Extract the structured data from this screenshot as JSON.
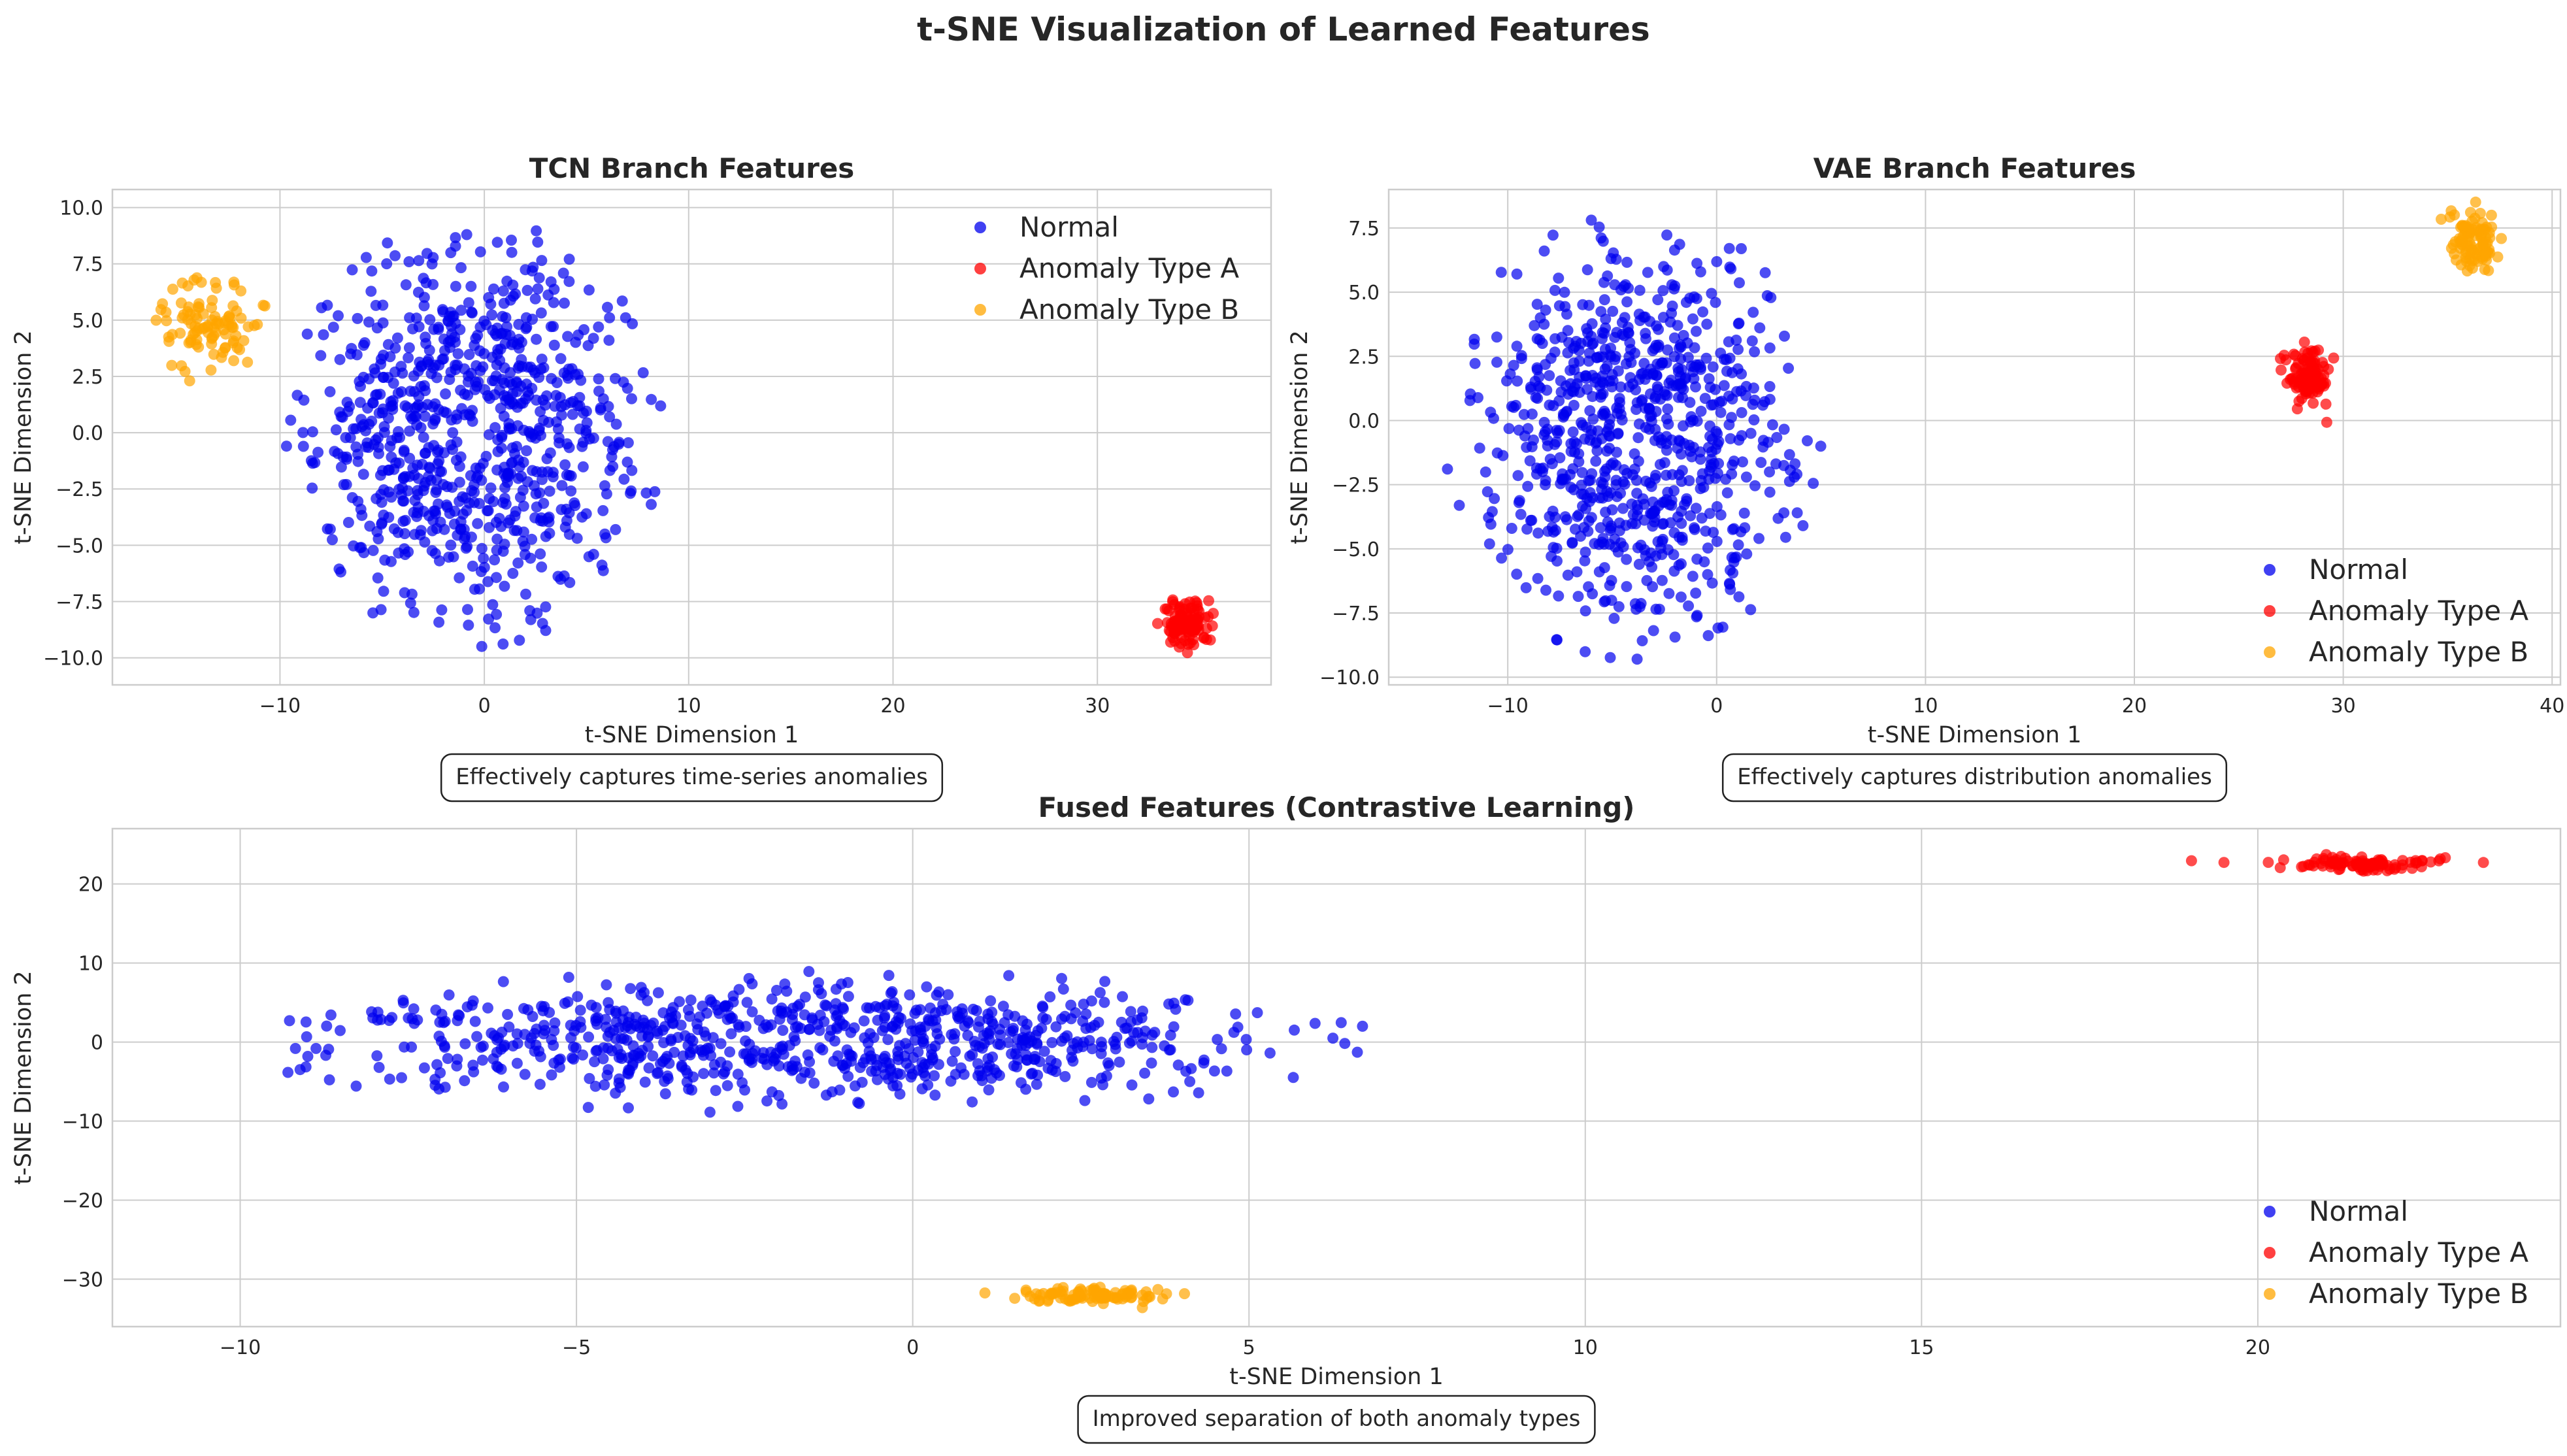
{
  "figure": {
    "title": "t-SNE Visualization of Learned Features"
  },
  "colors": {
    "normal": "#0000ee",
    "anomaly_a": "#ff0000",
    "anomaly_b": "#ffa500",
    "grid": "#cccccc",
    "axes_edge": "#cccccc"
  },
  "chart_data": [
    {
      "id": "tcn",
      "type": "scatter",
      "title": "TCN Branch Features",
      "xlabel": "t-SNE Dimension 1",
      "ylabel": "t-SNE Dimension 2",
      "xlim": [
        -18.2,
        38.5
      ],
      "ylim": [
        -11.2,
        10.8
      ],
      "xticks": [
        -10,
        0,
        10,
        20,
        30
      ],
      "yticks": [
        -10.0,
        -7.5,
        -5.0,
        -2.5,
        0.0,
        2.5,
        5.0,
        7.5,
        10.0
      ],
      "grid": true,
      "legend_position": "upper right",
      "annotation": "Effectively captures time-series anomalies",
      "series": [
        {
          "name": "Normal",
          "color_key": "normal",
          "count": 800,
          "distribution": {
            "shape": "disc",
            "center": [
              -0.5,
              0
            ],
            "radius_x": 9.2,
            "radius_y": 9.5
          }
        },
        {
          "name": "Anomaly Type A",
          "color_key": "anomaly_a",
          "count": 100,
          "distribution": {
            "shape": "gaussian",
            "center": [
              34.3,
              -8.5
            ],
            "sd_x": 0.55,
            "sd_y": 0.55
          }
        },
        {
          "name": "Anomaly Type B",
          "color_key": "anomaly_b",
          "count": 100,
          "distribution": {
            "shape": "gaussian",
            "center": [
              -13.5,
              4.8
            ],
            "sd_x": 1.3,
            "sd_y": 0.95
          }
        }
      ]
    },
    {
      "id": "vae",
      "type": "scatter",
      "title": "VAE Branch Features",
      "xlabel": "t-SNE Dimension 1",
      "ylabel": "t-SNE Dimension 2",
      "xlim": [
        -15.7,
        40.4
      ],
      "ylim": [
        -10.3,
        9.0
      ],
      "xticks": [
        -10,
        0,
        10,
        20,
        30,
        40
      ],
      "yticks": [
        -10.0,
        -7.5,
        -5.0,
        -2.5,
        0.0,
        2.5,
        5.0,
        7.5
      ],
      "grid": true,
      "legend_position": "lower right",
      "annotation": "Effectively captures distribution anomalies",
      "series": [
        {
          "name": "Normal",
          "color_key": "normal",
          "count": 800,
          "distribution": {
            "shape": "disc",
            "center": [
              -4,
              -0.5
            ],
            "radius_x": 9.0,
            "radius_y": 8.8
          }
        },
        {
          "name": "Anomaly Type A",
          "color_key": "anomaly_a",
          "count": 100,
          "distribution": {
            "shape": "gaussian",
            "center": [
              28.2,
              1.7
            ],
            "sd_x": 0.55,
            "sd_y": 0.55
          }
        },
        {
          "name": "Anomaly Type B",
          "color_key": "anomaly_b",
          "count": 100,
          "distribution": {
            "shape": "gaussian",
            "center": [
              36.3,
              6.9
            ],
            "sd_x": 0.6,
            "sd_y": 0.6
          }
        }
      ]
    },
    {
      "id": "fused",
      "type": "scatter",
      "title": "Fused Features (Contrastive Learning)",
      "xlabel": "t-SNE Dimension 1",
      "ylabel": "t-SNE Dimension 2",
      "xlim": [
        -11.9,
        24.5
      ],
      "ylim": [
        -36.0,
        27.0
      ],
      "xticks": [
        -10,
        -5,
        0,
        5,
        10,
        15,
        20
      ],
      "yticks": [
        -30,
        -20,
        -10,
        0,
        10,
        20
      ],
      "grid": true,
      "legend_position": "lower right",
      "annotation": "Improved separation of both anomaly types",
      "series": [
        {
          "name": "Normal",
          "color_key": "normal",
          "count": 800,
          "distribution": {
            "shape": "disc",
            "center": [
              -1.6,
              0
            ],
            "radius_x": 8.5,
            "radius_y": 9.0
          }
        },
        {
          "name": "Anomaly Type A",
          "color_key": "anomaly_a",
          "count": 100,
          "distribution": {
            "shape": "gaussian",
            "center": [
              21.6,
              22.5
            ],
            "sd_x": 0.6,
            "sd_y": 0.5
          }
        },
        {
          "name": "Anomaly Type B",
          "color_key": "anomaly_b",
          "count": 100,
          "distribution": {
            "shape": "gaussian",
            "center": [
              2.7,
              -32
            ],
            "sd_x": 0.6,
            "sd_y": 0.5
          }
        }
      ]
    }
  ]
}
